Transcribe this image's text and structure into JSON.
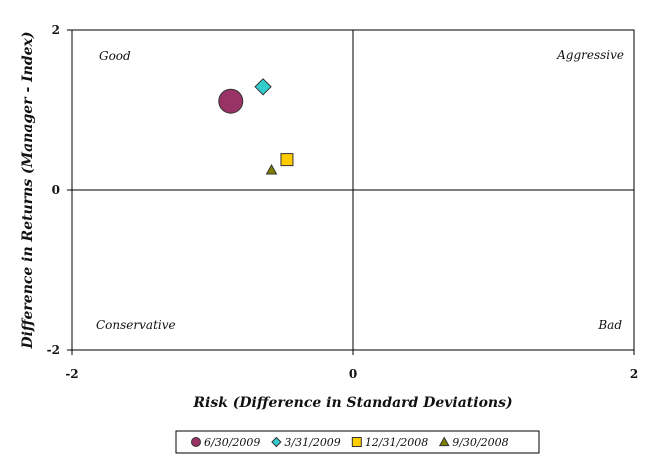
{
  "chart_data": {
    "type": "scatter",
    "xlabel": "Risk (Difference in Standard Deviations)",
    "ylabel": "Difference in Returns (Manager - Index)",
    "xlim": [
      -2,
      2
    ],
    "ylim": [
      -2,
      2
    ],
    "x_ticks": [
      "-2",
      "0",
      "2"
    ],
    "y_ticks": [
      "2",
      "0",
      "-2"
    ],
    "grid": false,
    "legend_position": "bottom",
    "quadrant_labels": {
      "top_left": "Good",
      "top_right": "Aggressive",
      "bottom_left": "Conservative",
      "bottom_right": "Bad"
    },
    "series": [
      {
        "name": "6/30/2009",
        "marker": "circle",
        "color": "#993366",
        "x": -0.87,
        "y": 1.11
      },
      {
        "name": "3/31/2009",
        "marker": "diamond",
        "color": "#33CCCC",
        "x": -0.64,
        "y": 1.29
      },
      {
        "name": "12/31/2008",
        "marker": "square",
        "color": "#FFCC00",
        "x": -0.47,
        "y": 0.38
      },
      {
        "name": "9/30/2008",
        "marker": "triangle",
        "color": "#808000",
        "x": -0.58,
        "y": 0.25
      }
    ]
  }
}
